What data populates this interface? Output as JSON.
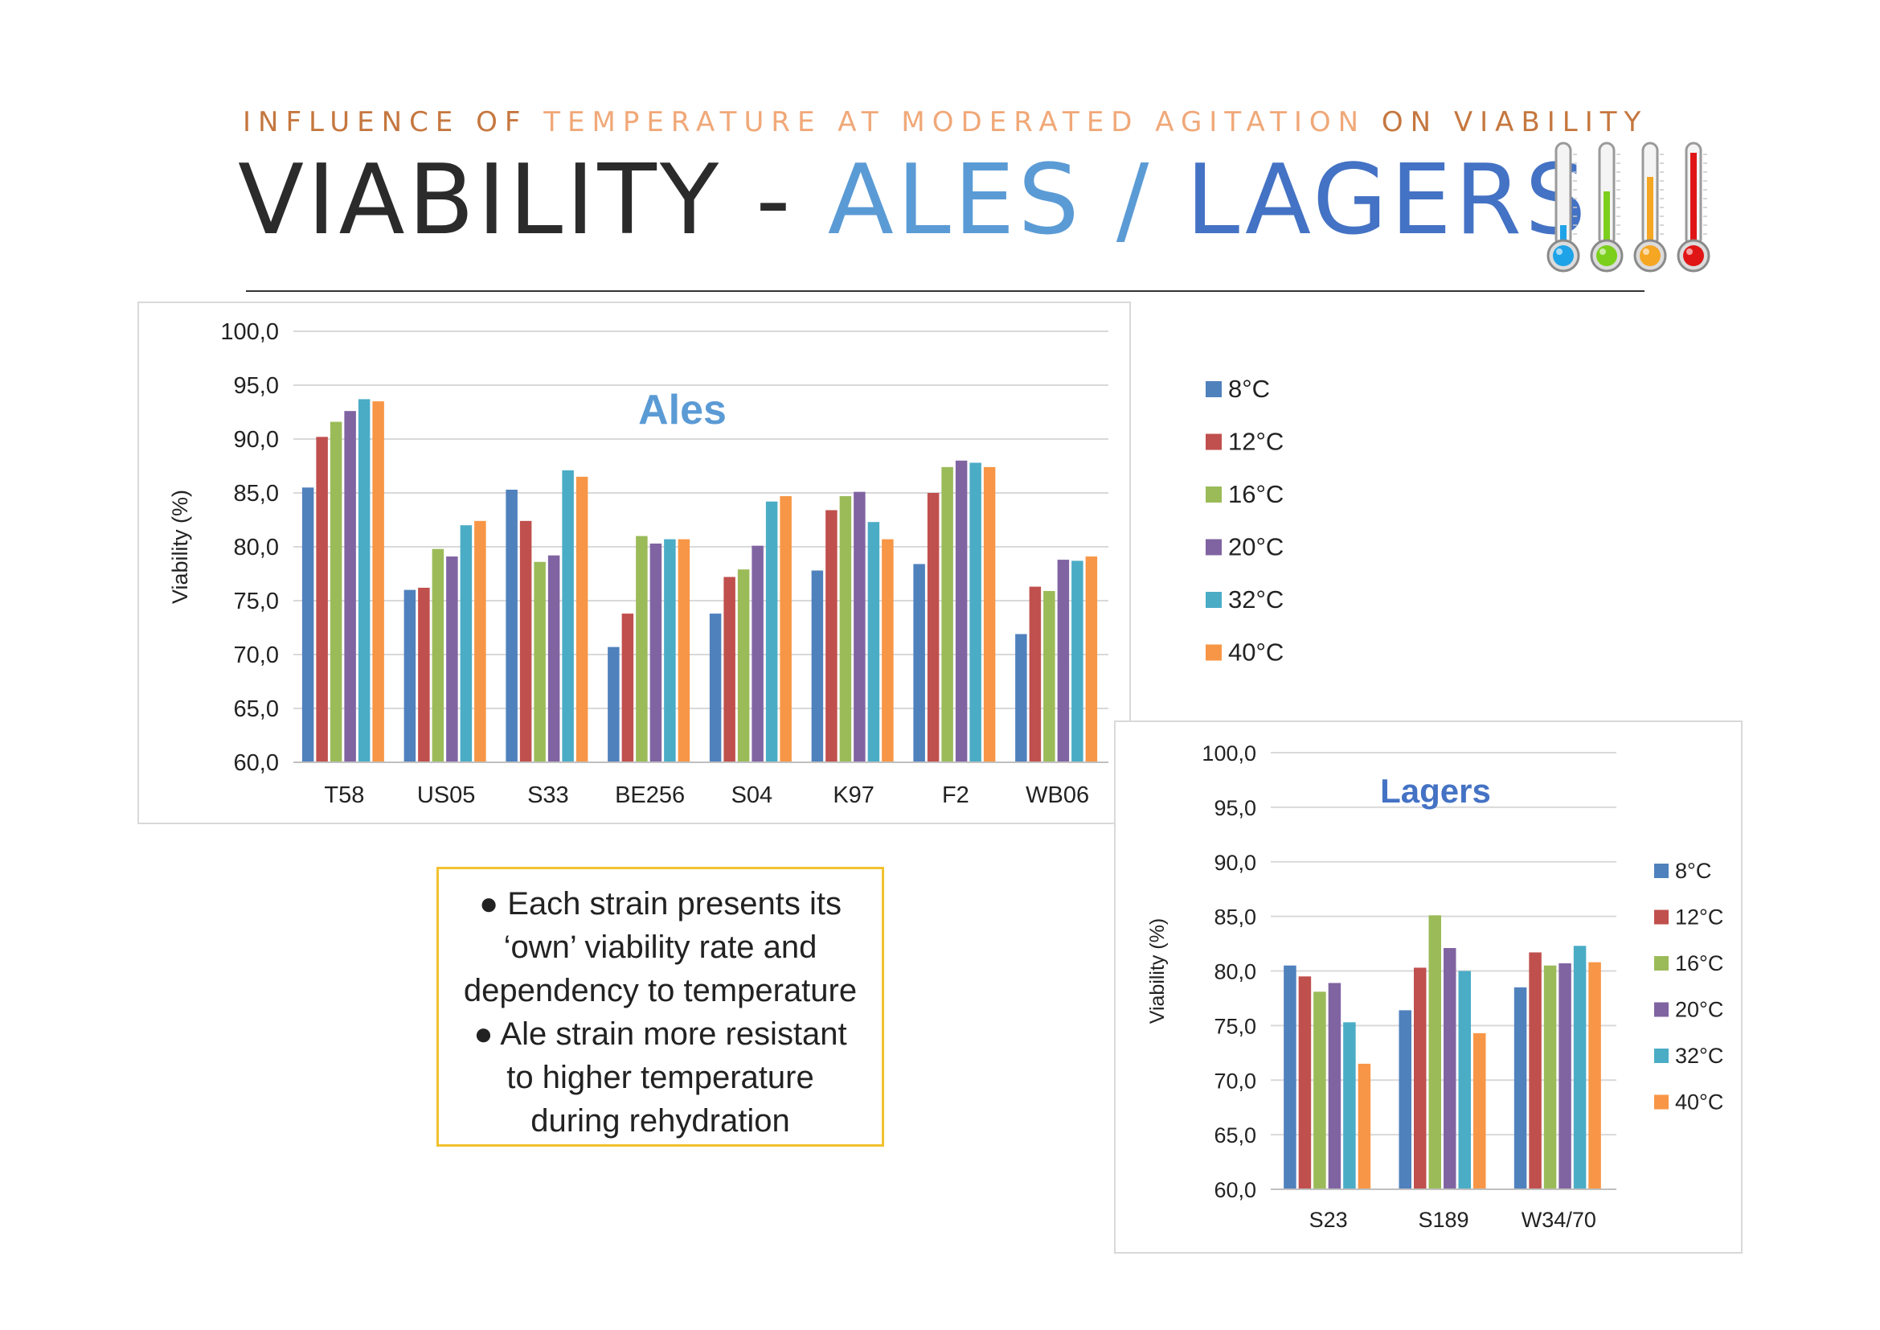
{
  "header": {
    "subtitle_parts": [
      {
        "text": "INFLUENCE OF ",
        "color": "#c5773f"
      },
      {
        "text": "TEMPERATURE AT MODERATED AGITATION ",
        "color": "#f0a878"
      },
      {
        "text": "ON VIABILITY",
        "color": "#c5773f"
      }
    ],
    "title_parts": [
      {
        "text": "VIABILITY - ",
        "color": "#2b2b2b"
      },
      {
        "text": "ALES / ",
        "color": "#5b9bd5"
      },
      {
        "text": "LAGERS",
        "color": "#4472c4"
      }
    ]
  },
  "thermometers": [
    {
      "icon": "thermometer-blue-icon",
      "fill_color": "#1fa3e8",
      "level": 0.2
    },
    {
      "icon": "thermometer-green-icon",
      "fill_color": "#7ccf1c",
      "level": 0.55
    },
    {
      "icon": "thermometer-orange-icon",
      "fill_color": "#f5a623",
      "level": 0.7
    },
    {
      "icon": "thermometer-red-icon",
      "fill_color": "#e01616",
      "level": 0.95
    }
  ],
  "chart_data": [
    {
      "type": "bar",
      "title": "Ales",
      "title_color": "#5b9bd5",
      "xlabel": "",
      "ylabel": "Viability (%)",
      "ylim": [
        60,
        100
      ],
      "y_ticks": [
        "60,0",
        "65,0",
        "70,0",
        "75,0",
        "80,0",
        "85,0",
        "90,0",
        "95,0",
        "100,0"
      ],
      "grid": true,
      "legend_position": "right",
      "categories": [
        "T58",
        "US05",
        "S33",
        "BE256",
        "S04",
        "K97",
        "F2",
        "WB06"
      ],
      "series": [
        {
          "name": "8°C",
          "color": "#4f81bd",
          "values": [
            85.5,
            76.0,
            85.3,
            70.7,
            73.8,
            77.8,
            78.4,
            71.9
          ]
        },
        {
          "name": "12°C",
          "color": "#c0504d",
          "values": [
            90.2,
            76.2,
            82.4,
            73.8,
            77.2,
            83.4,
            85.0,
            76.3
          ]
        },
        {
          "name": "16°C",
          "color": "#9bbb59",
          "values": [
            91.6,
            79.8,
            78.6,
            81.0,
            77.9,
            84.7,
            87.4,
            75.9
          ]
        },
        {
          "name": "20°C",
          "color": "#8064a2",
          "values": [
            92.6,
            79.1,
            79.2,
            80.3,
            80.1,
            85.1,
            88.0,
            78.8
          ]
        },
        {
          "name": "32°C",
          "color": "#4bacc6",
          "values": [
            93.7,
            82.0,
            87.1,
            80.7,
            84.2,
            82.3,
            87.8,
            78.7
          ]
        },
        {
          "name": "40°C",
          "color": "#f79646",
          "values": [
            93.5,
            82.4,
            86.5,
            80.7,
            84.7,
            80.7,
            87.4,
            79.1
          ]
        }
      ]
    },
    {
      "type": "bar",
      "title": "Lagers",
      "title_color": "#4472c4",
      "xlabel": "",
      "ylabel": "Viability (%)",
      "ylim": [
        60,
        100
      ],
      "y_ticks": [
        "60,0",
        "65,0",
        "70,0",
        "75,0",
        "80,0",
        "85,0",
        "90,0",
        "95,0",
        "100,0"
      ],
      "grid": true,
      "legend_position": "right",
      "categories": [
        "S23",
        "S189",
        "W34/70"
      ],
      "series": [
        {
          "name": "8°C",
          "color": "#4f81bd",
          "values": [
            80.5,
            76.4,
            78.5
          ]
        },
        {
          "name": "12°C",
          "color": "#c0504d",
          "values": [
            79.5,
            80.3,
            81.7
          ]
        },
        {
          "name": "16°C",
          "color": "#9bbb59",
          "values": [
            78.1,
            85.1,
            80.5
          ]
        },
        {
          "name": "20°C",
          "color": "#8064a2",
          "values": [
            78.9,
            82.1,
            80.7
          ]
        },
        {
          "name": "32°C",
          "color": "#4bacc6",
          "values": [
            75.3,
            80.0,
            82.3
          ]
        },
        {
          "name": "40°C",
          "color": "#f79646",
          "values": [
            71.5,
            74.3,
            80.8
          ]
        }
      ]
    }
  ],
  "note": {
    "lines": [
      "● Each strain presents its",
      "‘own’ viability rate and",
      "dependency to temperature",
      "● Ale strain more resistant",
      "to higher temperature",
      "during rehydration"
    ]
  }
}
